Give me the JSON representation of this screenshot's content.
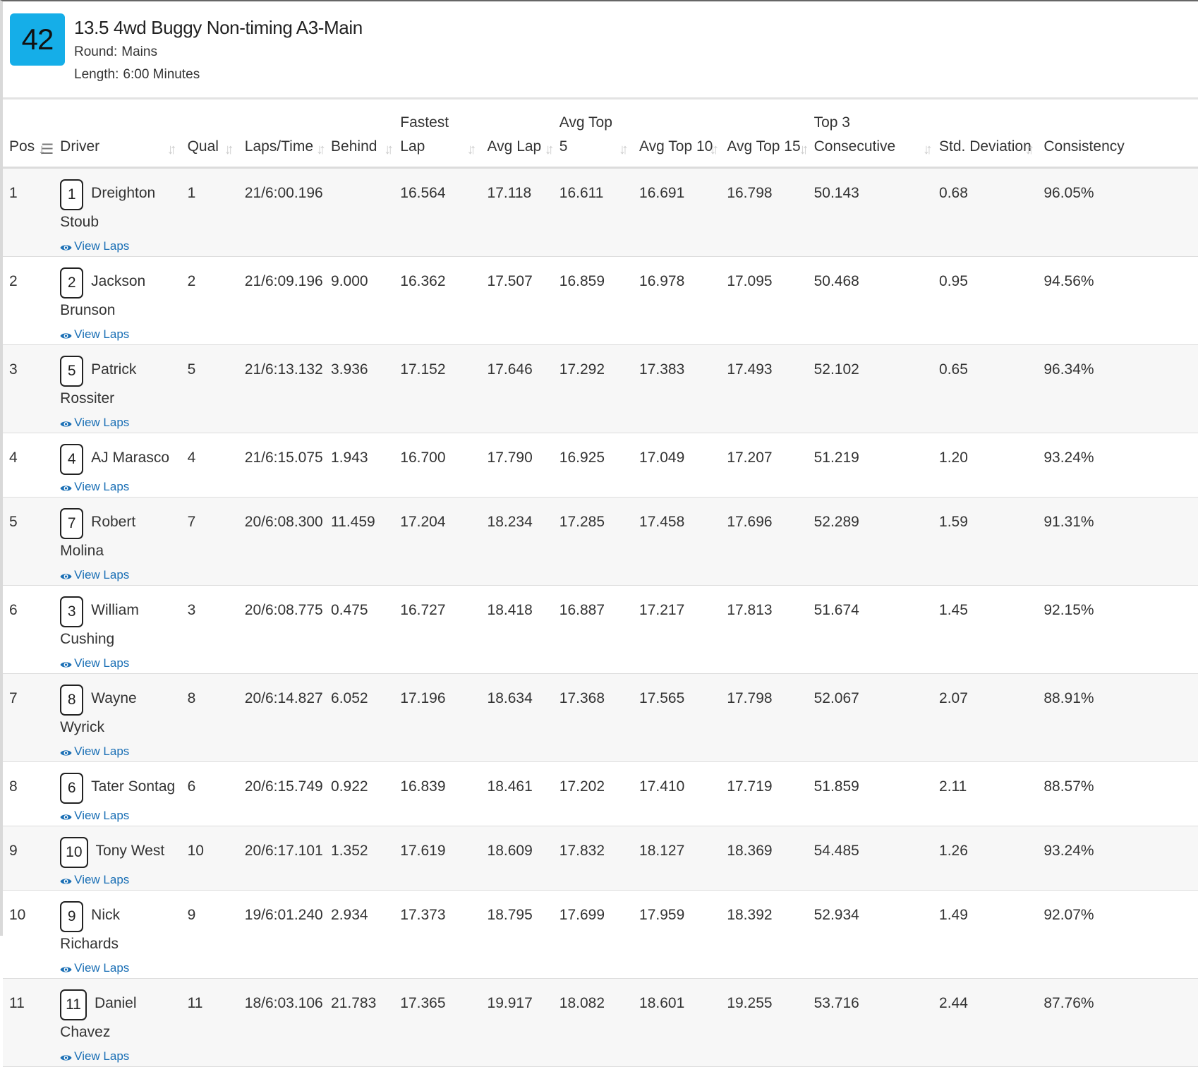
{
  "race": {
    "number": "42",
    "title": "13.5 4wd Buggy Non-timing A3-Main",
    "round_label": "Round:",
    "round_value": "Mains",
    "length_label": "Length:",
    "length_value": "6:00 Minutes"
  },
  "columns": {
    "pos": "Pos",
    "driver": "Driver",
    "qual": "Qual",
    "laps_time": "Laps/Time",
    "behind": "Behind",
    "fastest_lap_1": "Fastest",
    "fastest_lap_2": "Lap",
    "avg_lap": "Avg Lap",
    "avg_top5_1": "Avg Top",
    "avg_top5_2": "5",
    "avg_top10": "Avg Top 10",
    "avg_top15": "Avg Top 15",
    "top3_consecutive": "Top 3 Consecutive",
    "std_deviation": "Std. Deviation",
    "consistency": "Consistency"
  },
  "icons": {
    "sort": "sort-icon",
    "sort_active": "sort-ascending-icon",
    "view_laps": "eye-icon"
  },
  "colors": {
    "badge": "#15aee8",
    "link": "#1a6fb5",
    "row_stripe": "#f7f7f7"
  },
  "view_laps_label": "View Laps",
  "rows": [
    {
      "pos": "1",
      "car": "1",
      "name": "Dreighton Stoub",
      "qual": "1",
      "laps_time": "21/6:00.196",
      "behind": "",
      "fastest": "16.564",
      "avg_lap": "17.118",
      "avg_top5": "16.611",
      "avg_top10": "16.691",
      "avg_top15": "16.798",
      "top3": "50.143",
      "std": "0.68",
      "consistency": "96.05%"
    },
    {
      "pos": "2",
      "car": "2",
      "name": "Jackson Brunson",
      "qual": "2",
      "laps_time": "21/6:09.196",
      "behind": "9.000",
      "fastest": "16.362",
      "avg_lap": "17.507",
      "avg_top5": "16.859",
      "avg_top10": "16.978",
      "avg_top15": "17.095",
      "top3": "50.468",
      "std": "0.95",
      "consistency": "94.56%"
    },
    {
      "pos": "3",
      "car": "5",
      "name": "Patrick Rossiter",
      "qual": "5",
      "laps_time": "21/6:13.132",
      "behind": "3.936",
      "fastest": "17.152",
      "avg_lap": "17.646",
      "avg_top5": "17.292",
      "avg_top10": "17.383",
      "avg_top15": "17.493",
      "top3": "52.102",
      "std": "0.65",
      "consistency": "96.34%"
    },
    {
      "pos": "4",
      "car": "4",
      "name": "AJ Marasco",
      "qual": "4",
      "laps_time": "21/6:15.075",
      "behind": "1.943",
      "fastest": "16.700",
      "avg_lap": "17.790",
      "avg_top5": "16.925",
      "avg_top10": "17.049",
      "avg_top15": "17.207",
      "top3": "51.219",
      "std": "1.20",
      "consistency": "93.24%"
    },
    {
      "pos": "5",
      "car": "7",
      "name": "Robert Molina",
      "qual": "7",
      "laps_time": "20/6:08.300",
      "behind": "11.459",
      "fastest": "17.204",
      "avg_lap": "18.234",
      "avg_top5": "17.285",
      "avg_top10": "17.458",
      "avg_top15": "17.696",
      "top3": "52.289",
      "std": "1.59",
      "consistency": "91.31%"
    },
    {
      "pos": "6",
      "car": "3",
      "name": "William Cushing",
      "qual": "3",
      "laps_time": "20/6:08.775",
      "behind": "0.475",
      "fastest": "16.727",
      "avg_lap": "18.418",
      "avg_top5": "16.887",
      "avg_top10": "17.217",
      "avg_top15": "17.813",
      "top3": "51.674",
      "std": "1.45",
      "consistency": "92.15%"
    },
    {
      "pos": "7",
      "car": "8",
      "name": "Wayne Wyrick",
      "qual": "8",
      "laps_time": "20/6:14.827",
      "behind": "6.052",
      "fastest": "17.196",
      "avg_lap": "18.634",
      "avg_top5": "17.368",
      "avg_top10": "17.565",
      "avg_top15": "17.798",
      "top3": "52.067",
      "std": "2.07",
      "consistency": "88.91%"
    },
    {
      "pos": "8",
      "car": "6",
      "name": "Tater Sontag",
      "qual": "6",
      "laps_time": "20/6:15.749",
      "behind": "0.922",
      "fastest": "16.839",
      "avg_lap": "18.461",
      "avg_top5": "17.202",
      "avg_top10": "17.410",
      "avg_top15": "17.719",
      "top3": "51.859",
      "std": "2.11",
      "consistency": "88.57%"
    },
    {
      "pos": "9",
      "car": "10",
      "name": "Tony West",
      "qual": "10",
      "laps_time": "20/6:17.101",
      "behind": "1.352",
      "fastest": "17.619",
      "avg_lap": "18.609",
      "avg_top5": "17.832",
      "avg_top10": "18.127",
      "avg_top15": "18.369",
      "top3": "54.485",
      "std": "1.26",
      "consistency": "93.24%"
    },
    {
      "pos": "10",
      "car": "9",
      "name": "Nick Richards",
      "qual": "9",
      "laps_time": "19/6:01.240",
      "behind": "2.934",
      "fastest": "17.373",
      "avg_lap": "18.795",
      "avg_top5": "17.699",
      "avg_top10": "17.959",
      "avg_top15": "18.392",
      "top3": "52.934",
      "std": "1.49",
      "consistency": "92.07%"
    },
    {
      "pos": "11",
      "car": "11",
      "name": "Daniel Chavez",
      "qual": "11",
      "laps_time": "18/6:03.106",
      "behind": "21.783",
      "fastest": "17.365",
      "avg_lap": "19.917",
      "avg_top5": "18.082",
      "avg_top10": "18.601",
      "avg_top15": "19.255",
      "top3": "53.716",
      "std": "2.44",
      "consistency": "87.76%"
    }
  ]
}
